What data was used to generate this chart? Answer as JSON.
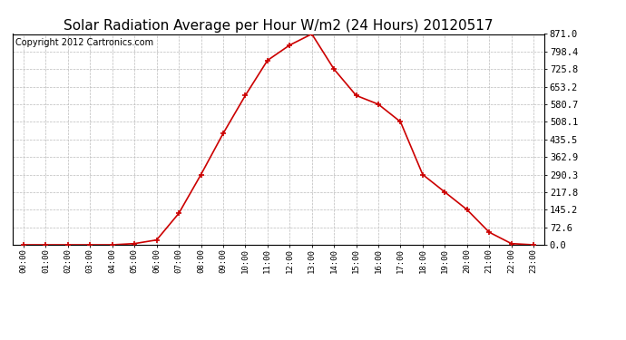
{
  "title": "Solar Radiation Average per Hour W/m2 (24 Hours) 20120517",
  "copyright_text": "Copyright 2012 Cartronics.com",
  "hours": [
    "00:00",
    "01:00",
    "02:00",
    "03:00",
    "04:00",
    "05:00",
    "06:00",
    "07:00",
    "08:00",
    "09:00",
    "10:00",
    "11:00",
    "12:00",
    "13:00",
    "14:00",
    "15:00",
    "16:00",
    "17:00",
    "18:00",
    "19:00",
    "20:00",
    "21:00",
    "22:00",
    "23:00"
  ],
  "values": [
    0.0,
    0.0,
    0.0,
    0.0,
    0.0,
    5.0,
    20.0,
    130.0,
    290.3,
    460.0,
    617.0,
    762.0,
    825.0,
    871.0,
    725.8,
    617.0,
    580.7,
    508.1,
    290.3,
    217.8,
    145.2,
    52.0,
    5.0,
    0.0
  ],
  "y_ticks": [
    0.0,
    72.6,
    145.2,
    217.8,
    290.3,
    362.9,
    435.5,
    508.1,
    580.7,
    653.2,
    725.8,
    798.4,
    871.0
  ],
  "y_tick_labels": [
    "0.0",
    "72.6",
    "145.2",
    "217.8",
    "290.3",
    "362.9",
    "435.5",
    "508.1",
    "580.7",
    "653.2",
    "725.8",
    "798.4",
    "871.0"
  ],
  "line_color": "#cc0000",
  "marker_color": "#000000",
  "background_color": "#ffffff",
  "plot_bg_color": "#ffffff",
  "grid_color": "#bbbbbb",
  "title_fontsize": 11,
  "copyright_fontsize": 7,
  "ylim": [
    0,
    871.0
  ],
  "xlim": [
    -0.5,
    23.5
  ]
}
